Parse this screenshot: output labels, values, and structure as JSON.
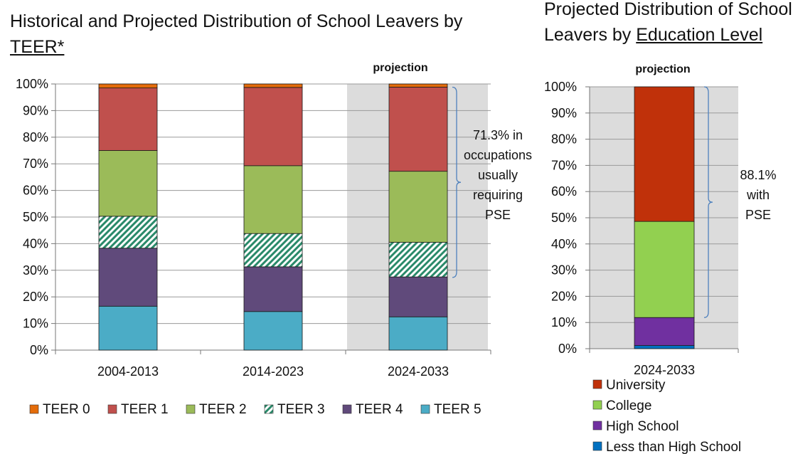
{
  "left_title": {
    "prefix": "Historical and Projected Distribution of School Leavers by ",
    "underlined": "TEER*"
  },
  "right_title": {
    "prefix": "Projected Distribution of School Leavers by ",
    "underlined": "Education Level"
  },
  "colors": {
    "TEER 0": "#e46c0a",
    "TEER 1": "#c0504d",
    "TEER 2": "#9bbb59",
    "TEER 3": "#2a8a6a",
    "TEER 4": "#604a7b",
    "TEER 5": "#4bacc6",
    "University": "#c0310a",
    "College": "#92d050",
    "High School": "#7030a0",
    "Less than High School": "#0070c0",
    "projection_bg": "#dcdcdc",
    "brace": "#4f81bd"
  },
  "chart_data": [
    {
      "type": "bar",
      "stacked": true,
      "title": "Historical and Projected Distribution of School Leavers by TEER*",
      "categories": [
        "2004-2013",
        "2014-2023",
        "2024-2033"
      ],
      "series": [
        {
          "name": "TEER 5",
          "values": [
            16.5,
            14.5,
            12.5
          ]
        },
        {
          "name": "TEER 4",
          "values": [
            21.8,
            16.8,
            15.0
          ]
        },
        {
          "name": "TEER 3",
          "values": [
            12.0,
            12.5,
            13.0
          ]
        },
        {
          "name": "TEER 2",
          "values": [
            24.7,
            25.5,
            26.7
          ]
        },
        {
          "name": "TEER 1",
          "values": [
            23.5,
            29.4,
            31.6
          ]
        },
        {
          "name": "TEER 0",
          "values": [
            1.5,
            1.3,
            1.2
          ]
        }
      ],
      "ylim": [
        0,
        100
      ],
      "yticks": [
        "0%",
        "10%",
        "20%",
        "30%",
        "40%",
        "50%",
        "60%",
        "70%",
        "80%",
        "90%",
        "100%"
      ],
      "xlabel": "",
      "ylabel": "",
      "grid": true,
      "projection_label": "projection",
      "projection_category": "2024-2033",
      "annotation": {
        "lines": [
          "71.3% in",
          "occupations",
          "usually",
          "requiring",
          "PSE"
        ],
        "from": 27.3,
        "to": 98.8
      },
      "legend": [
        "TEER 0",
        "TEER 1",
        "TEER 2",
        "TEER 3",
        "TEER 4",
        "TEER 5"
      ],
      "legend_position": "bottom"
    },
    {
      "type": "bar",
      "stacked": true,
      "title": "Projected Distribution of School Leavers by Education Level",
      "categories": [
        "2024-2033"
      ],
      "series": [
        {
          "name": "Less than High School",
          "values": [
            1.2
          ]
        },
        {
          "name": "High School",
          "values": [
            10.7
          ]
        },
        {
          "name": "College",
          "values": [
            36.7
          ]
        },
        {
          "name": "University",
          "values": [
            51.4
          ]
        }
      ],
      "ylim": [
        0,
        100
      ],
      "yticks": [
        "0%",
        "10%",
        "20%",
        "30%",
        "40%",
        "50%",
        "60%",
        "70%",
        "80%",
        "90%",
        "100%"
      ],
      "xlabel": "",
      "ylabel": "",
      "grid": true,
      "projection_label": "projection",
      "annotation": {
        "lines": [
          "88.1%",
          "with",
          "PSE"
        ],
        "from": 11.9,
        "to": 100
      },
      "legend": [
        "University",
        "College",
        "High School",
        "Less than High School"
      ],
      "legend_position": "bottom"
    }
  ]
}
